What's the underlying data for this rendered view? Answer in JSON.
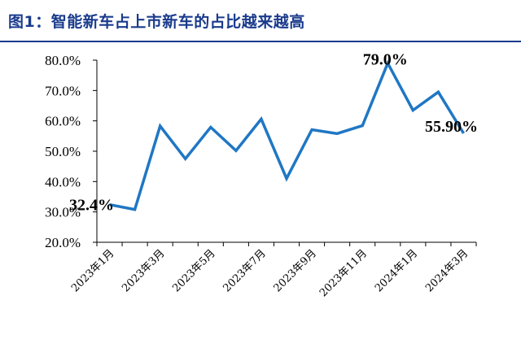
{
  "header": {
    "title": "图1：智能新车占上市新车的占比越来越高"
  },
  "chart_data": {
    "type": "line",
    "title": "图1：智能新车占上市新车的占比越来越高",
    "xlabel": "",
    "ylabel": "",
    "ylim": [
      20,
      80
    ],
    "y_ticks": [
      "20.0%",
      "30.0%",
      "40.0%",
      "50.0%",
      "60.0%",
      "70.0%",
      "80.0%"
    ],
    "x": [
      "2023-01",
      "2023-02",
      "2023-03",
      "2023-04",
      "2023-05",
      "2023-06",
      "2023-07",
      "2023-08",
      "2023-09",
      "2023-10",
      "2023-11",
      "2023-12",
      "2024-01",
      "2024-02",
      "2024-03"
    ],
    "x_tick_labels": [
      {
        "index": 0,
        "label": "2023年1月"
      },
      {
        "index": 2,
        "label": "2023年3月"
      },
      {
        "index": 4,
        "label": "2023年5月"
      },
      {
        "index": 6,
        "label": "2023年7月"
      },
      {
        "index": 8,
        "label": "2023年9月"
      },
      {
        "index": 10,
        "label": "2023年11月"
      },
      {
        "index": 12,
        "label": "2024年1月"
      },
      {
        "index": 14,
        "label": "2024年3月"
      }
    ],
    "series": [
      {
        "values": [
          32.4,
          30.8,
          58.3,
          47.5,
          57.9,
          50.2,
          60.6,
          41.0,
          57.1,
          55.8,
          58.4,
          79.0,
          63.5,
          69.5,
          55.9
        ],
        "color": "#1f77c4"
      }
    ],
    "annotations": [
      {
        "index": 0,
        "text": "32.4%"
      },
      {
        "index": 11,
        "text": "79.0%"
      },
      {
        "index": 14,
        "text": "55.90%"
      }
    ],
    "grid": false,
    "legend": "none"
  }
}
